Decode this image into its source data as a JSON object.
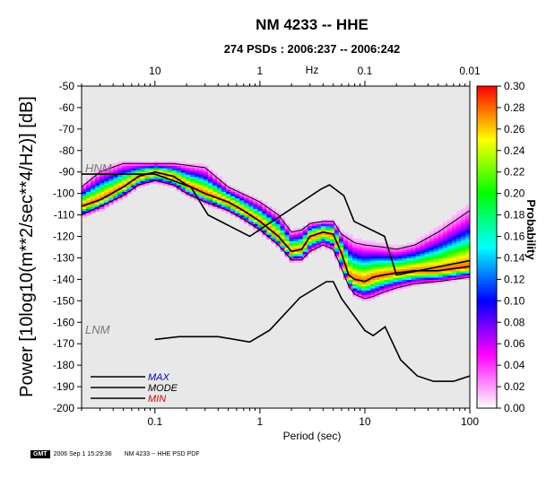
{
  "title": "NM 4233 -- HHE",
  "subtitle": "274 PSDs : 2006:237 -- 2006:242",
  "footer": {
    "logo": "GMT",
    "timestamp": "2006 Sep 1 15:29:36",
    "label": "NM 4233 -- HHE PSD PDF"
  },
  "chart_data": {
    "type": "heatmap",
    "title": "NM 4233 -- HHE",
    "subtitle": "274 PSDs : 2006:237 -- 2006:242",
    "xlabel": "Period (sec)",
    "ylabel": "Power [10log10(m**2/sec**4/Hz)] [dB]",
    "x_scale": "log",
    "xlim": [
      0.02,
      100
    ],
    "ylim": [
      -200,
      -50
    ],
    "x_ticks": [
      0.1,
      1,
      10,
      100
    ],
    "x_tick_labels": [
      "0.1",
      "1",
      "10",
      "100"
    ],
    "top_axis_label": "Hz",
    "top_ticks": [
      10,
      1,
      0.1,
      0.01
    ],
    "top_tick_labels": [
      "10",
      "1",
      "0.1",
      "0.01"
    ],
    "y_ticks": [
      -50,
      -60,
      -70,
      -80,
      -90,
      -100,
      -110,
      -120,
      -130,
      -140,
      -150,
      -160,
      -170,
      -180,
      -190,
      -200
    ],
    "colorbar": {
      "label": "Probability",
      "range": [
        0,
        0.3
      ],
      "ticks": [
        0.0,
        0.02,
        0.04,
        0.06,
        0.08,
        0.1,
        0.12,
        0.14,
        0.16,
        0.18,
        0.2,
        0.22,
        0.24,
        0.26,
        0.28,
        0.3
      ],
      "tick_labels": [
        "0.00",
        "0.02",
        "0.04",
        "0.06",
        "0.08",
        "0.10",
        "0.12",
        "0.14",
        "0.16",
        "0.18",
        "0.20",
        "0.22",
        "0.24",
        "0.26",
        "0.28",
        "0.30"
      ],
      "colors": [
        "#ffffff",
        "#ff00ff",
        "#0000ff",
        "#00ffff",
        "#00ff00",
        "#ffff00",
        "#ff0000"
      ]
    },
    "annotations": [
      "HNM",
      "LNM"
    ],
    "legend": {
      "placement": "bottom-left",
      "entries": [
        "MAX",
        "MODE",
        "MIN"
      ],
      "colors": [
        "#0000cc",
        "#000000",
        "#dd0000"
      ]
    },
    "series": [
      {
        "name": "MODE",
        "period": [
          0.02,
          0.03,
          0.05,
          0.07,
          0.1,
          0.15,
          0.2,
          0.3,
          0.5,
          0.7,
          1,
          1.5,
          2,
          2.5,
          3,
          4,
          5,
          6,
          7,
          8,
          10,
          12,
          15,
          20,
          30,
          50,
          100
        ],
        "power": [
          -106,
          -103,
          -97,
          -92,
          -90,
          -92,
          -96,
          -100,
          -104,
          -108,
          -113,
          -120,
          -127,
          -126,
          -120,
          -118,
          -119,
          -128,
          -138,
          -140,
          -141,
          -139,
          -138,
          -137,
          -136,
          -136,
          -134
        ]
      },
      {
        "name": "HNM",
        "period": [
          0.02,
          0.1,
          0.22,
          0.32,
          0.8,
          3.8,
          4.6,
          6.3,
          7.9,
          15.4,
          20,
          354
        ],
        "power": [
          -91,
          -91,
          -97,
          -110,
          -120,
          -98,
          -96,
          -101,
          -113,
          -120,
          -138,
          -126
        ]
      },
      {
        "name": "LNM",
        "period": [
          0.1,
          0.17,
          0.4,
          0.8,
          1.24,
          2.4,
          4.3,
          5,
          6,
          10,
          12,
          15.6,
          21.9,
          31.6,
          45,
          70,
          100
        ],
        "power": [
          -168,
          -166.7,
          -166.7,
          -169.2,
          -163.7,
          -148.6,
          -141.1,
          -141.1,
          -149,
          -163.8,
          -166.2,
          -162.1,
          -177.5,
          -185,
          -187.5,
          -187.5,
          -185
        ]
      },
      {
        "name": "MAX",
        "period": [
          0.02,
          0.03,
          0.05,
          0.08,
          0.1,
          0.15,
          0.3,
          0.5,
          1,
          1.5,
          2,
          2.5,
          3,
          4,
          5,
          6,
          8,
          10,
          15,
          20,
          30,
          50,
          100
        ],
        "power": [
          -97,
          -90,
          -86,
          -86,
          -86,
          -86,
          -88,
          -97,
          -104,
          -110,
          -118,
          -117,
          -114,
          -113,
          -113,
          -119,
          -123,
          -124,
          -125,
          -126,
          -124,
          -118,
          -108
        ]
      },
      {
        "name": "MIN",
        "period": [
          0.02,
          0.03,
          0.05,
          0.07,
          0.1,
          0.15,
          0.2,
          0.3,
          0.5,
          0.7,
          1,
          1.5,
          2,
          2.5,
          3,
          4,
          5,
          6,
          7,
          8,
          10,
          12,
          15,
          20,
          30,
          50,
          100
        ],
        "power": [
          -110,
          -106,
          -101,
          -96,
          -94,
          -96,
          -100,
          -104,
          -108,
          -112,
          -117,
          -124,
          -131,
          -131,
          -127,
          -124,
          -126,
          -135,
          -143,
          -147,
          -149,
          -148,
          -146,
          -144,
          -142,
          -141,
          -139
        ]
      }
    ]
  }
}
